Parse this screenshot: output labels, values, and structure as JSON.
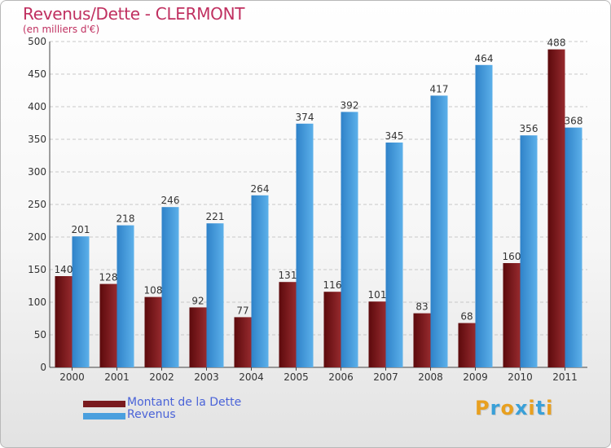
{
  "chart_data": {
    "type": "bar",
    "title": "Revenus/Dette - CLERMONT",
    "subtitle": "(en milliers d'€)",
    "xlabel": "",
    "ylabel": "",
    "ylim": [
      0,
      500
    ],
    "yticks": [
      "0",
      "50",
      "100",
      "150",
      "200",
      "250",
      "300",
      "350",
      "400",
      "450",
      "500"
    ],
    "grid": true,
    "legend_position": "bottom-left",
    "categories": [
      "2000",
      "2001",
      "2002",
      "2003",
      "2004",
      "2005",
      "2006",
      "2007",
      "2008",
      "2009",
      "2010",
      "2011"
    ],
    "series": [
      {
        "name": "Montant de la Dette",
        "color": "#7a1a1e",
        "values": [
          140,
          128,
          108,
          92,
          77,
          131,
          116,
          101,
          83,
          68,
          160,
          488
        ],
        "value_labels": [
          "140",
          "128",
          "108",
          "92",
          "77",
          "131",
          "116",
          "101",
          "83",
          "68",
          "160",
          "488"
        ]
      },
      {
        "name": "Revenus",
        "color": "#4a9fde",
        "values": [
          201,
          218,
          246,
          221,
          264,
          374,
          392,
          345,
          417,
          464,
          356,
          368
        ],
        "value_labels": [
          "201",
          "218",
          "246",
          "221",
          "264",
          "374",
          "392",
          "345",
          "417",
          "464",
          "356",
          "368"
        ]
      }
    ]
  },
  "logo": {
    "letters": [
      "P",
      "r",
      "o",
      "x",
      "i",
      "t",
      "i"
    ],
    "colors": [
      "#e8a020",
      "#3aa0d8",
      "#e8a020",
      "#3aa0d8",
      "#e8a020",
      "#3aa0d8",
      "#e8a020"
    ]
  }
}
